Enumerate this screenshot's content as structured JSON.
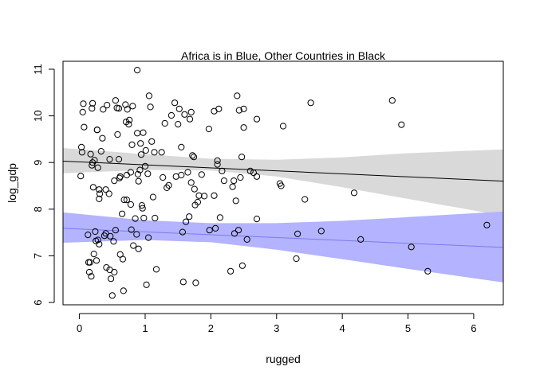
{
  "chart_data": {
    "type": "scatter",
    "title": "Africa is in Blue, Other Countries in Black",
    "xlabel": "rugged",
    "ylabel": "log_gdp",
    "xlim": [
      -0.25,
      6.45
    ],
    "ylim": [
      5.95,
      11.17
    ],
    "x_ticks": [
      "0",
      "1",
      "2",
      "3",
      "4",
      "5",
      "6"
    ],
    "y_ticks": [
      "6",
      "7",
      "8",
      "9",
      "10",
      "11"
    ],
    "colors": {
      "other_line": "#000000",
      "other_band": "#d9d9d9",
      "africa_line": "#7b7bf0",
      "africa_band": "#b3b3ff",
      "points": "#000000"
    },
    "regression": [
      {
        "group": "Other Countries",
        "line": [
          [
            -0.25,
            9.03
          ],
          [
            6.45,
            8.6
          ]
        ],
        "band_x": [
          -0.25,
          1.0,
          2.0,
          3.0,
          4.0,
          5.0,
          6.45
        ],
        "band_lower": [
          8.77,
          8.84,
          8.83,
          8.7,
          8.47,
          8.22,
          7.86
        ],
        "band_upper": [
          9.31,
          9.18,
          9.08,
          9.06,
          9.11,
          9.2,
          9.28
        ]
      },
      {
        "group": "Africa",
        "line": [
          [
            -0.25,
            7.59
          ],
          [
            6.45,
            7.18
          ]
        ],
        "band_x": [
          -0.25,
          1.0,
          2.0,
          3.0,
          4.0,
          5.0,
          6.45
        ],
        "band_lower": [
          7.28,
          7.34,
          7.29,
          7.13,
          6.93,
          6.72,
          6.43
        ],
        "band_upper": [
          7.93,
          7.76,
          7.7,
          7.7,
          7.75,
          7.83,
          7.95
        ]
      }
    ],
    "points": [
      [
        0.03,
        9.33
      ],
      [
        0.04,
        9.22
      ],
      [
        0.02,
        8.71
      ],
      [
        0.05,
        10.08
      ],
      [
        0.06,
        10.26
      ],
      [
        0.07,
        9.76
      ],
      [
        0.13,
        7.45
      ],
      [
        0.14,
        6.86
      ],
      [
        0.15,
        6.65
      ],
      [
        0.16,
        6.86
      ],
      [
        0.18,
        6.56
      ],
      [
        0.17,
        9.18
      ],
      [
        0.19,
        10.16
      ],
      [
        0.2,
        10.27
      ],
      [
        0.2,
        9.0
      ],
      [
        0.21,
        8.47
      ],
      [
        0.19,
        8.94
      ],
      [
        0.23,
        9.05
      ],
      [
        0.22,
        7.04
      ],
      [
        0.24,
        7.52
      ],
      [
        0.25,
        7.32
      ],
      [
        0.26,
        6.9
      ],
      [
        0.27,
        9.7
      ],
      [
        0.28,
        8.89
      ],
      [
        0.27,
        9.7
      ],
      [
        0.3,
        8.42
      ],
      [
        0.3,
        8.22
      ],
      [
        0.31,
        8.33
      ],
      [
        0.28,
        7.34
      ],
      [
        0.3,
        7.25
      ],
      [
        0.33,
        9.24
      ],
      [
        0.35,
        9.52
      ],
      [
        0.36,
        10.14
      ],
      [
        0.38,
        7.43
      ],
      [
        0.4,
        8.42
      ],
      [
        0.4,
        7.48
      ],
      [
        0.41,
        6.75
      ],
      [
        0.42,
        10.23
      ],
      [
        0.45,
        8.33
      ],
      [
        0.46,
        9.07
      ],
      [
        0.46,
        6.7
      ],
      [
        0.47,
        7.42
      ],
      [
        0.48,
        6.51
      ],
      [
        0.5,
        6.15
      ],
      [
        0.52,
        7.31
      ],
      [
        0.53,
        6.65
      ],
      [
        0.53,
        8.61
      ],
      [
        0.55,
        7.55
      ],
      [
        0.55,
        10.33
      ],
      [
        0.57,
        10.17
      ],
      [
        0.58,
        9.6
      ],
      [
        0.6,
        10.16
      ],
      [
        0.6,
        9.07
      ],
      [
        0.61,
        8.67
      ],
      [
        0.62,
        8.7
      ],
      [
        0.62,
        7.03
      ],
      [
        0.65,
        7.9
      ],
      [
        0.66,
        6.93
      ],
      [
        0.67,
        6.25
      ],
      [
        0.68,
        8.2
      ],
      [
        0.7,
        10.24
      ],
      [
        0.71,
        9.87
      ],
      [
        0.72,
        8.73
      ],
      [
        0.72,
        8.2
      ],
      [
        0.73,
        10.14
      ],
      [
        0.75,
        9.82
      ],
      [
        0.76,
        9.91
      ],
      [
        0.78,
        8.79
      ],
      [
        0.78,
        8.1
      ],
      [
        0.79,
        7.56
      ],
      [
        0.8,
        9.38
      ],
      [
        0.81,
        10.21
      ],
      [
        0.82,
        7.22
      ],
      [
        0.85,
        7.8
      ],
      [
        0.87,
        7.46
      ],
      [
        0.88,
        10.98
      ],
      [
        0.88,
        9.63
      ],
      [
        0.89,
        8.75
      ],
      [
        0.9,
        7.15
      ],
      [
        0.9,
        8.6
      ],
      [
        0.92,
        8.84
      ],
      [
        0.93,
        9.41
      ],
      [
        0.94,
        9.17
      ],
      [
        0.95,
        8.08
      ],
      [
        0.96,
        8.02
      ],
      [
        0.97,
        9.64
      ],
      [
        0.98,
        7.81
      ],
      [
        1.0,
        8.92
      ],
      [
        1.01,
        9.26
      ],
      [
        1.02,
        6.38
      ],
      [
        1.04,
        8.76
      ],
      [
        1.05,
        7.39
      ],
      [
        1.06,
        10.43
      ],
      [
        1.08,
        10.19
      ],
      [
        1.1,
        9.45
      ],
      [
        1.12,
        8.26
      ],
      [
        1.14,
        9.22
      ],
      [
        1.15,
        7.81
      ],
      [
        1.17,
        6.71
      ],
      [
        1.25,
        9.22
      ],
      [
        1.27,
        8.68
      ],
      [
        1.3,
        9.84
      ],
      [
        1.33,
        8.46
      ],
      [
        1.36,
        8.51
      ],
      [
        1.4,
        10.01
      ],
      [
        1.45,
        10.28
      ],
      [
        1.47,
        8.7
      ],
      [
        1.5,
        9.82
      ],
      [
        1.52,
        10.15
      ],
      [
        1.55,
        9.33
      ],
      [
        1.55,
        8.73
      ],
      [
        1.57,
        7.51
      ],
      [
        1.58,
        6.44
      ],
      [
        1.6,
        10.03
      ],
      [
        1.62,
        7.73
      ],
      [
        1.65,
        8.79
      ],
      [
        1.67,
        7.84
      ],
      [
        1.68,
        9.93
      ],
      [
        1.7,
        10.08
      ],
      [
        1.7,
        8.57
      ],
      [
        1.72,
        9.15
      ],
      [
        1.74,
        9.12
      ],
      [
        1.75,
        8.43
      ],
      [
        1.76,
        8.09
      ],
      [
        1.77,
        6.42
      ],
      [
        1.8,
        8.15
      ],
      [
        1.82,
        8.29
      ],
      [
        1.86,
        8.74
      ],
      [
        1.9,
        8.28
      ],
      [
        1.97,
        9.72
      ],
      [
        1.98,
        7.55
      ],
      [
        2.05,
        10.1
      ],
      [
        2.05,
        8.29
      ],
      [
        2.07,
        7.59
      ],
      [
        2.1,
        8.96
      ],
      [
        2.1,
        9.04
      ],
      [
        2.12,
        10.15
      ],
      [
        2.14,
        7.82
      ],
      [
        2.17,
        8.82
      ],
      [
        2.2,
        8.61
      ],
      [
        2.3,
        6.67
      ],
      [
        2.33,
        8.48
      ],
      [
        2.35,
        8.61
      ],
      [
        2.36,
        7.48
      ],
      [
        2.38,
        8.18
      ],
      [
        2.4,
        10.43
      ],
      [
        2.42,
        7.55
      ],
      [
        2.43,
        10.12
      ],
      [
        2.45,
        8.68
      ],
      [
        2.47,
        9.12
      ],
      [
        2.48,
        6.79
      ],
      [
        2.5,
        9.75
      ],
      [
        2.5,
        10.15
      ],
      [
        2.55,
        7.35
      ],
      [
        2.6,
        8.82
      ],
      [
        2.65,
        8.78
      ],
      [
        2.7,
        8.7
      ],
      [
        2.7,
        9.93
      ],
      [
        2.7,
        7.79
      ],
      [
        3.05,
        8.55
      ],
      [
        3.07,
        8.5
      ],
      [
        3.1,
        9.78
      ],
      [
        3.3,
        6.94
      ],
      [
        3.32,
        7.47
      ],
      [
        3.43,
        8.21
      ],
      [
        3.52,
        10.28
      ],
      [
        3.68,
        7.53
      ],
      [
        4.18,
        8.35
      ],
      [
        4.28,
        7.35
      ],
      [
        4.76,
        10.33
      ],
      [
        4.9,
        9.81
      ],
      [
        5.05,
        7.19
      ],
      [
        5.3,
        6.67
      ],
      [
        6.2,
        7.66
      ]
    ]
  }
}
